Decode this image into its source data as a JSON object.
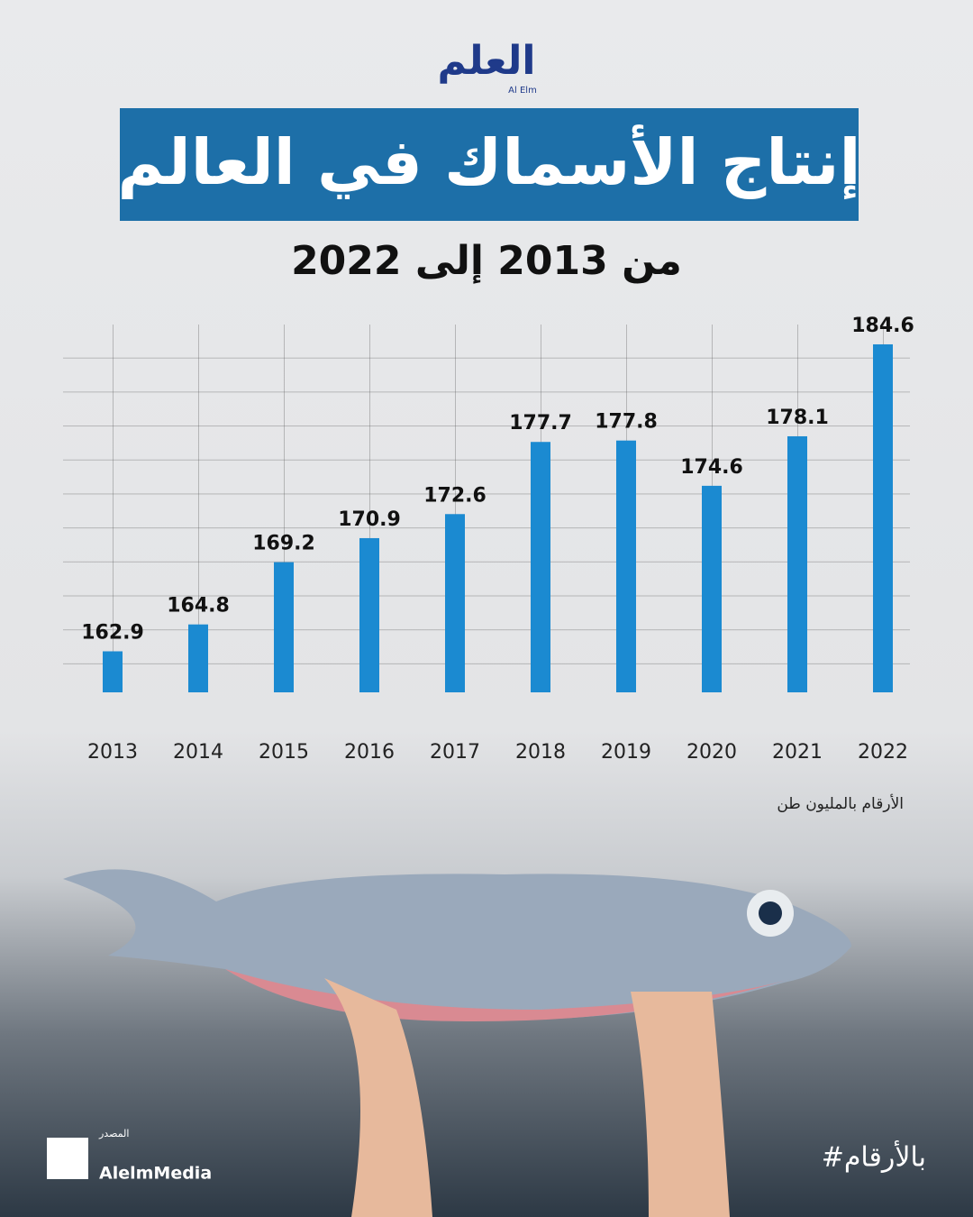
{
  "header": {
    "logo": "العلم",
    "logo_sub": "Al Elm"
  },
  "chart_data": {
    "type": "bar",
    "title": "إنتاج الأسماك في العالم",
    "subtitle": "من 2013 إلى 2022",
    "categories": [
      "2013",
      "2014",
      "2015",
      "2016",
      "2017",
      "2018",
      "2019",
      "2020",
      "2021",
      "2022"
    ],
    "values": [
      162.9,
      164.8,
      169.2,
      170.9,
      172.6,
      177.7,
      177.8,
      174.6,
      178.1,
      184.6
    ],
    "color": "#1b8ad1",
    "ylim": [
      160,
      186
    ],
    "note": "الأرقام بالمليون طن"
  },
  "footer": {
    "source_label": "المصدر",
    "handle": "AlelmMedia",
    "hashtag": "#بالأرقام"
  }
}
